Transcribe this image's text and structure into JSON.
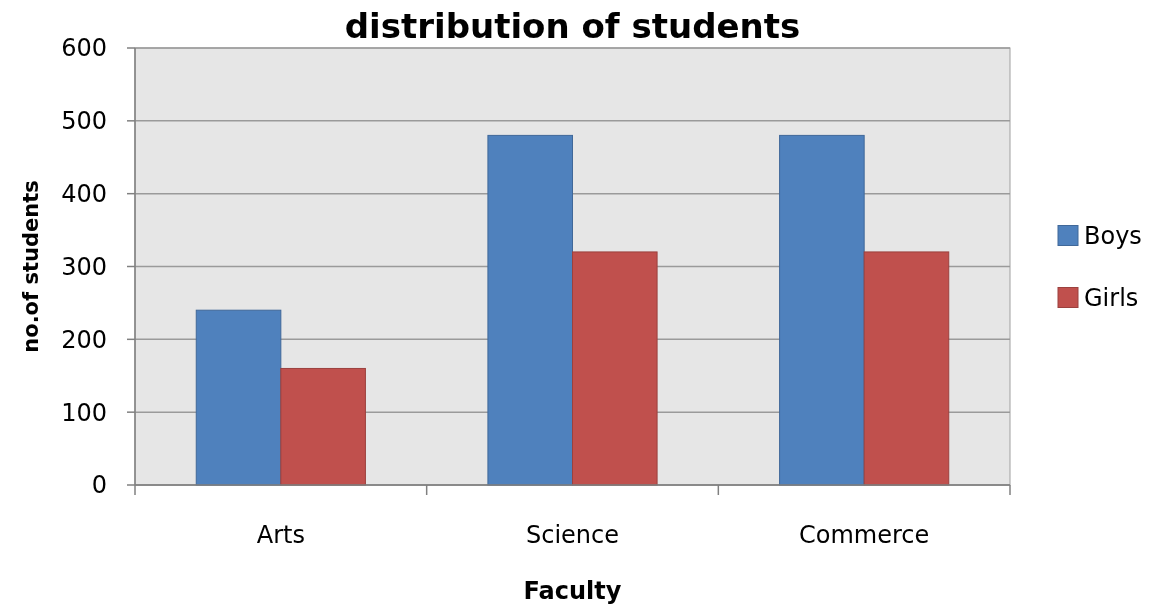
{
  "chart_data": {
    "type": "bar",
    "title": "distribution of students",
    "xlabel": "Faculty",
    "ylabel": "no.of students",
    "categories": [
      "Arts",
      "Science",
      "Commerce"
    ],
    "series": [
      {
        "name": "Boys",
        "color": "#4f81bd",
        "values": [
          240,
          480,
          480
        ]
      },
      {
        "name": "Girls",
        "color": "#c0504d",
        "values": [
          160,
          320,
          320
        ]
      }
    ],
    "ylim": [
      0,
      600
    ],
    "yticks": [
      0,
      100,
      200,
      300,
      400,
      500,
      600
    ],
    "grid": "y",
    "legend": "right"
  }
}
